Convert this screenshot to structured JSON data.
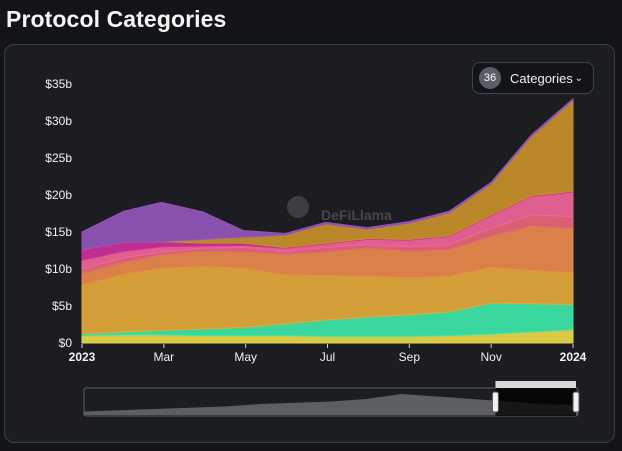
{
  "title": "Protocol Categories",
  "categories_button": {
    "count": "36",
    "label": "Categories"
  },
  "watermark": "DeFiLlama",
  "colors": {
    "background": "#1b1d21",
    "brush_handle": "#f0f0f0"
  },
  "chart_data": {
    "type": "area",
    "stacked": true,
    "x": [
      "2023-01-01",
      "2023-02-01",
      "2023-03-01",
      "2023-04-01",
      "2023-05-01",
      "2023-06-01",
      "2023-07-01",
      "2023-08-01",
      "2023-09-01",
      "2023-10-01",
      "2023-11-01",
      "2023-12-01",
      "2024-01-01"
    ],
    "xtick_labels": [
      "2023",
      "Mar",
      "May",
      "Jul",
      "Sep",
      "Nov",
      "2024"
    ],
    "ytick_labels": [
      "$0",
      "$5b",
      "$10b",
      "$15b",
      "$20b",
      "$25b",
      "$30b",
      "$35b"
    ],
    "ylim": [
      0,
      35
    ],
    "grid": false,
    "series": [
      {
        "color": "#e8d94a",
        "values": [
          1.0,
          1.1,
          1.1,
          1.0,
          1.0,
          1.0,
          0.9,
          0.9,
          0.9,
          1.0,
          1.2,
          1.5,
          1.8
        ]
      },
      {
        "color": "#3ce6a8",
        "values": [
          0.2,
          0.4,
          0.6,
          0.9,
          1.1,
          1.6,
          2.2,
          2.6,
          2.9,
          3.2,
          4.2,
          3.8,
          3.4
        ]
      },
      {
        "color": "#e3a93a",
        "values": [
          6.6,
          7.8,
          8.4,
          8.4,
          8.0,
          6.6,
          6.0,
          5.5,
          5.0,
          4.8,
          4.8,
          4.5,
          4.3
        ]
      },
      {
        "color": "#e98a4c",
        "values": [
          1.6,
          1.6,
          1.8,
          2.1,
          2.2,
          2.8,
          3.2,
          3.8,
          3.6,
          3.6,
          4.2,
          6.0,
          6.0
        ]
      },
      {
        "color": "#e8677a",
        "values": [
          0.6,
          0.6,
          0.4,
          0.4,
          0.6,
          0.4,
          0.6,
          0.5,
          0.6,
          0.7,
          1.1,
          1.5,
          1.6
        ]
      },
      {
        "color": "#f0669a",
        "values": [
          1.2,
          0.9,
          0.7,
          0.3,
          0.3,
          0.4,
          0.5,
          0.7,
          0.9,
          1.1,
          1.7,
          2.5,
          3.3
        ]
      },
      {
        "color": "#cc2f9a",
        "values": [
          1.4,
          1.2,
          0.7,
          0.4,
          0.3,
          0.1,
          0.1,
          0.1,
          0.1,
          0.1,
          0.1,
          0.1,
          0.1
        ]
      },
      {
        "color": "#c8902a",
        "values": [
          0.0,
          0.0,
          0.0,
          0.5,
          0.8,
          1.7,
          2.6,
          1.3,
          2.2,
          3.1,
          4.2,
          8.0,
          12.3
        ]
      },
      {
        "color": "#9455ba",
        "values": [
          2.4,
          4.2,
          5.3,
          3.7,
          0.9,
          0.2,
          0.2,
          0.2,
          0.2,
          0.2,
          0.2,
          0.2,
          0.2
        ]
      }
    ],
    "overview": {
      "values": [
        2,
        3,
        4,
        5,
        6,
        8,
        9,
        10,
        12,
        16,
        14,
        12,
        10,
        8,
        7
      ],
      "selected_from": "2023-11-01",
      "selected_to": "2024-01-01"
    }
  }
}
